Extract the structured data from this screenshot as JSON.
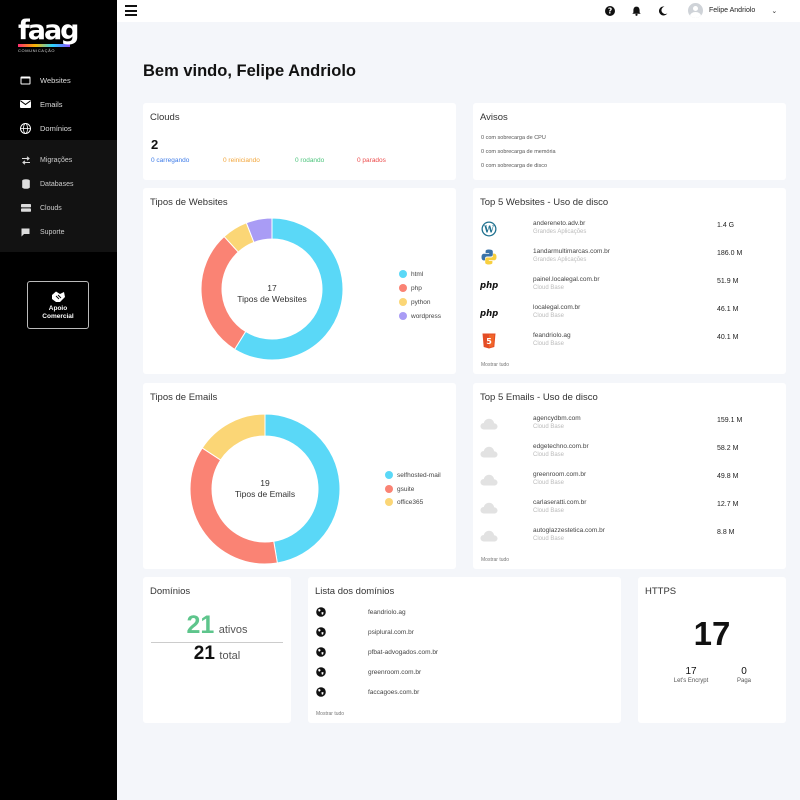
{
  "sidebar": {
    "logo": "faag",
    "logo_sub": "COMUNICAÇÃO",
    "main_items": [
      {
        "label": "Websites",
        "icon": "browser-icon"
      },
      {
        "label": "Emails",
        "icon": "envelope-icon"
      },
      {
        "label": "Domínios",
        "icon": "globe-icon"
      }
    ],
    "sub_items": [
      {
        "label": "Migrações",
        "icon": "swap-icon"
      },
      {
        "label": "Databases",
        "icon": "database-icon"
      },
      {
        "label": "Clouds",
        "icon": "server-icon"
      },
      {
        "label": "Suporte",
        "icon": "chat-icon"
      }
    ],
    "apoio_line1": "Apoio",
    "apoio_line2": "Comercial"
  },
  "topbar": {
    "user_name": "Felipe Andriolo",
    "icons": [
      "help-icon",
      "bell-icon",
      "moon-icon"
    ]
  },
  "welcome": "Bem vindo, Felipe Andriolo",
  "clouds": {
    "title": "Clouds",
    "count": "2",
    "stats": [
      {
        "label": "0 carregando",
        "color": "#3d7be8"
      },
      {
        "label": "0 reiniciando",
        "color": "#f2a63b"
      },
      {
        "label": "0 rodando",
        "color": "#4cc47c"
      },
      {
        "label": "0 parados",
        "color": "#ec4b4b"
      }
    ]
  },
  "avisos": {
    "title": "Avisos",
    "items": [
      "0 com sobrecarga de CPU",
      "0 com sobrecarga de memória",
      "0 com sobrecarga de disco"
    ]
  },
  "tipos_websites": {
    "title": "Tipos de Websites",
    "center_count": "17",
    "center_label": "Tipos de Websites",
    "slices": [
      {
        "name": "html",
        "value": 10,
        "color": "#5ad8f7"
      },
      {
        "name": "php",
        "value": 5,
        "color": "#fa8374"
      },
      {
        "name": "python",
        "value": 1,
        "color": "#fbd676"
      },
      {
        "name": "wordpress",
        "value": 1,
        "color": "#a99cf5"
      }
    ]
  },
  "top5_websites": {
    "title": "Top 5 Websites - Uso de disco",
    "rows": [
      {
        "name": "andereneto.adv.br",
        "sub": "Grandes Aplicações",
        "size": "1.4 G",
        "icon": "wordpress-icon"
      },
      {
        "name": "1andarmultimarcas.com.br",
        "sub": "Grandes Aplicações",
        "size": "186.0 M",
        "icon": "python-icon"
      },
      {
        "name": "painel.localegal.com.br",
        "sub": "Cloud Base",
        "size": "51.9 M",
        "icon": "php-icon"
      },
      {
        "name": "localegal.com.br",
        "sub": "Cloud Base",
        "size": "46.1 M",
        "icon": "php-icon"
      },
      {
        "name": "feandriolo.ag",
        "sub": "Cloud Base",
        "size": "40.1 M",
        "icon": "html5-icon"
      }
    ],
    "mostrar": "Mostrar tudo"
  },
  "tipos_emails": {
    "title": "Tipos de Emails",
    "center_count": "19",
    "center_label": "Tipos de Emails",
    "slices": [
      {
        "name": "selfhosted-mail",
        "value": 9,
        "color": "#5ad8f7"
      },
      {
        "name": "gsuite",
        "value": 7,
        "color": "#fa8374"
      },
      {
        "name": "office365",
        "value": 3,
        "color": "#fbd676"
      }
    ]
  },
  "top5_emails": {
    "title": "Top 5 Emails - Uso de disco",
    "rows": [
      {
        "name": "agencydbm.com",
        "sub": "Cloud Base",
        "size": "159.1 M",
        "icon": "cloud-icon"
      },
      {
        "name": "edgetechno.com.br",
        "sub": "Cloud Base",
        "size": "58.2 M",
        "icon": "cloud-icon"
      },
      {
        "name": "greenroom.com.br",
        "sub": "Cloud Base",
        "size": "49.8 M",
        "icon": "cloud-icon"
      },
      {
        "name": "carlaseratti.com.br",
        "sub": "Cloud Base",
        "size": "12.7 M",
        "icon": "cloud-icon"
      },
      {
        "name": "autoglazzestetica.com.br",
        "sub": "Cloud Base",
        "size": "8.8 M",
        "icon": "cloud-icon"
      }
    ],
    "mostrar": "Mostrar tudo"
  },
  "dominios": {
    "title": "Domínios",
    "ativos": "21",
    "ativos_label": "ativos",
    "total": "21",
    "total_label": "total"
  },
  "lista_dominios": {
    "title": "Lista dos domínios",
    "items": [
      "feandriolo.ag",
      "psiplural.com.br",
      "pfbat-advogados.com.br",
      "greenroom.com.br",
      "faccagoes.com.br"
    ],
    "mostrar": "Mostrar tudo"
  },
  "https": {
    "title": "HTTPS",
    "total": "17",
    "letsencrypt_count": "17",
    "letsencrypt_label": "Let's Encrypt",
    "paga_count": "0",
    "paga_label": "Paga"
  }
}
